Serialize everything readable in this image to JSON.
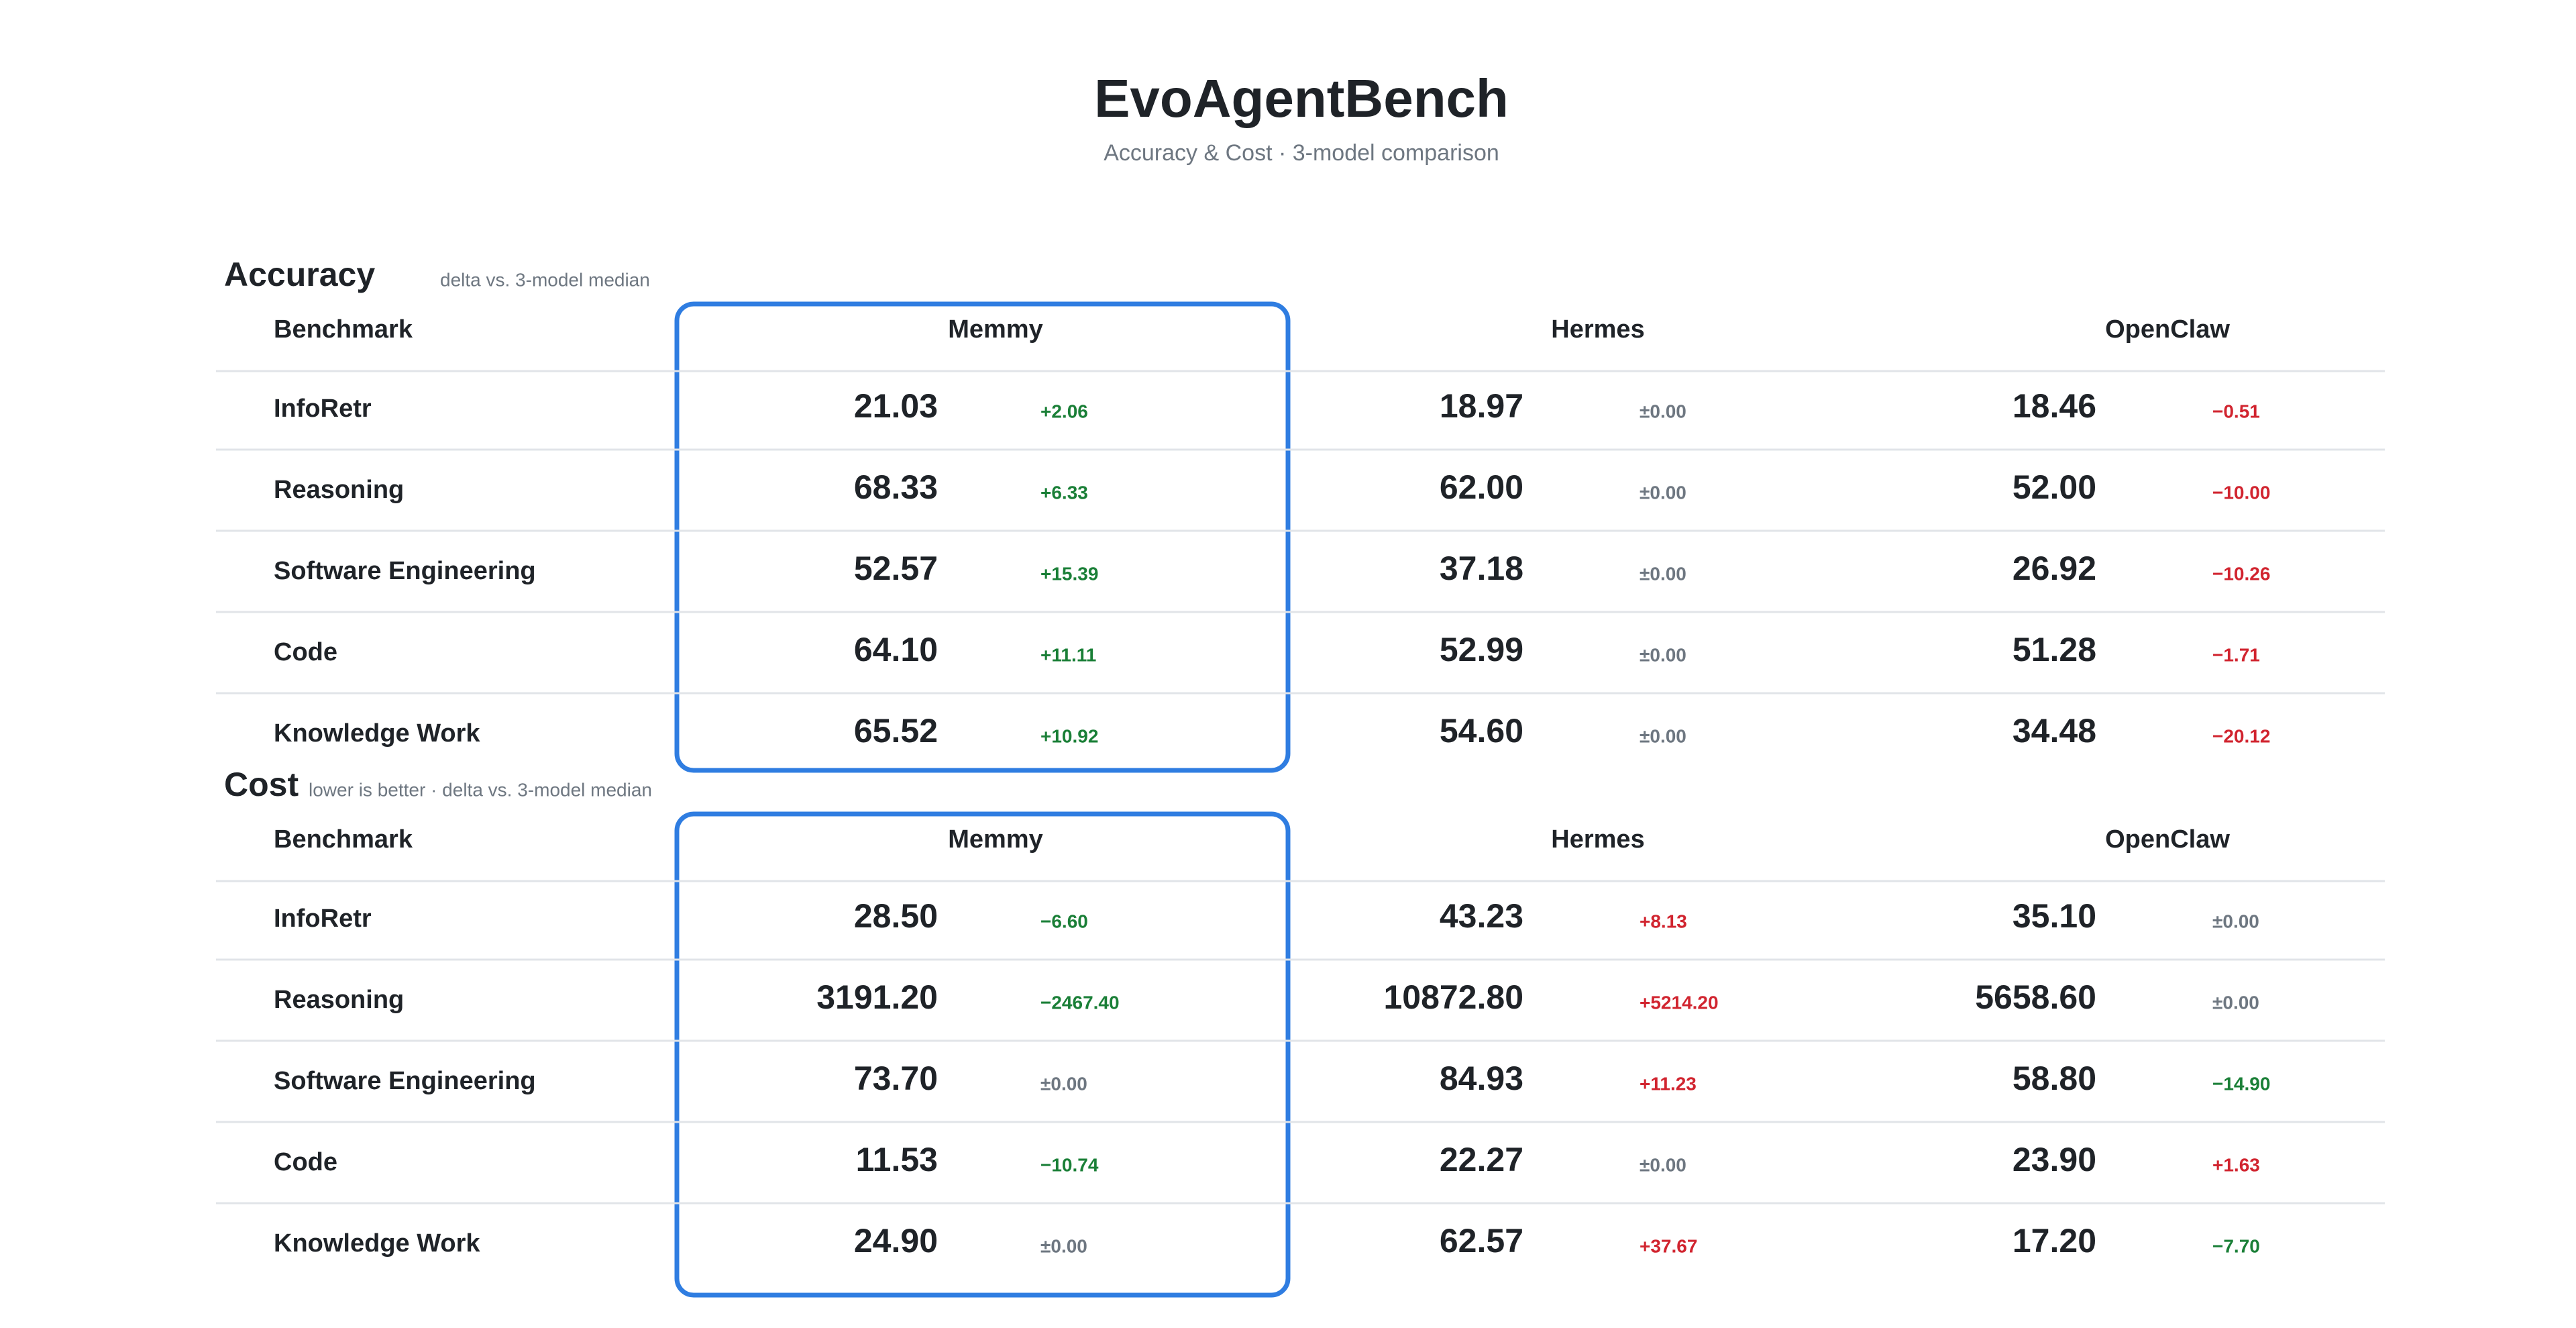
{
  "header": {
    "title": "EvoAgentBench",
    "subtitle": "Accuracy & Cost · 3-model comparison"
  },
  "sections": [
    {
      "title": "Accuracy",
      "note": "delta vs. 3-model median",
      "positive_color": "#1a7f37",
      "negative_color": "#d1242f",
      "neutral_color": "#6e7781",
      "highlight_color": "#2f7de1",
      "columns": [
        "Benchmark",
        "Memmy",
        "Hermes",
        "OpenClaw"
      ],
      "rows": [
        {
          "label": "InfoRetr",
          "cells": [
            {
              "value": "21.03",
              "delta": "+2.06"
            },
            {
              "value": "18.97",
              "delta": "±0.00"
            },
            {
              "value": "18.46",
              "delta": "−0.51"
            }
          ]
        },
        {
          "label": "Reasoning",
          "cells": [
            {
              "value": "68.33",
              "delta": "+6.33"
            },
            {
              "value": "62.00",
              "delta": "±0.00"
            },
            {
              "value": "52.00",
              "delta": "−10.00"
            }
          ]
        },
        {
          "label": "Software Engineering",
          "cells": [
            {
              "value": "52.57",
              "delta": "+15.39"
            },
            {
              "value": "37.18",
              "delta": "±0.00"
            },
            {
              "value": "26.92",
              "delta": "−10.26"
            }
          ]
        },
        {
          "label": "Code",
          "cells": [
            {
              "value": "64.10",
              "delta": "+11.11"
            },
            {
              "value": "52.99",
              "delta": "±0.00"
            },
            {
              "value": "51.28",
              "delta": "−1.71"
            }
          ]
        },
        {
          "label": "Knowledge Work",
          "cells": [
            {
              "value": "65.52",
              "delta": "+10.92"
            },
            {
              "value": "54.60",
              "delta": "±0.00"
            },
            {
              "value": "34.48",
              "delta": "−20.12"
            }
          ]
        }
      ]
    },
    {
      "title": "Cost",
      "note": "lower is better · delta vs. 3-model median",
      "positive_color": "#d1242f",
      "negative_color": "#1a7f37",
      "neutral_color": "#6e7781",
      "highlight_color": "#2f7de1",
      "columns": [
        "Benchmark",
        "Memmy",
        "Hermes",
        "OpenClaw"
      ],
      "rows": [
        {
          "label": "InfoRetr",
          "cells": [
            {
              "value": "28.50",
              "delta": "−6.60"
            },
            {
              "value": "43.23",
              "delta": "+8.13"
            },
            {
              "value": "35.10",
              "delta": "±0.00"
            }
          ]
        },
        {
          "label": "Reasoning",
          "cells": [
            {
              "value": "3191.20",
              "delta": "−2467.40"
            },
            {
              "value": "10872.80",
              "delta": "+5214.20"
            },
            {
              "value": "5658.60",
              "delta": "±0.00"
            }
          ]
        },
        {
          "label": "Software Engineering",
          "cells": [
            {
              "value": "73.70",
              "delta": "±0.00"
            },
            {
              "value": "84.93",
              "delta": "+11.23"
            },
            {
              "value": "58.80",
              "delta": "−14.90"
            }
          ]
        },
        {
          "label": "Code",
          "cells": [
            {
              "value": "11.53",
              "delta": "−10.74"
            },
            {
              "value": "22.27",
              "delta": "±0.00"
            },
            {
              "value": "23.90",
              "delta": "+1.63"
            }
          ]
        },
        {
          "label": "Knowledge Work",
          "cells": [
            {
              "value": "24.90",
              "delta": "±0.00"
            },
            {
              "value": "62.57",
              "delta": "+37.67"
            },
            {
              "value": "17.20",
              "delta": "−7.70"
            }
          ]
        }
      ]
    }
  ]
}
